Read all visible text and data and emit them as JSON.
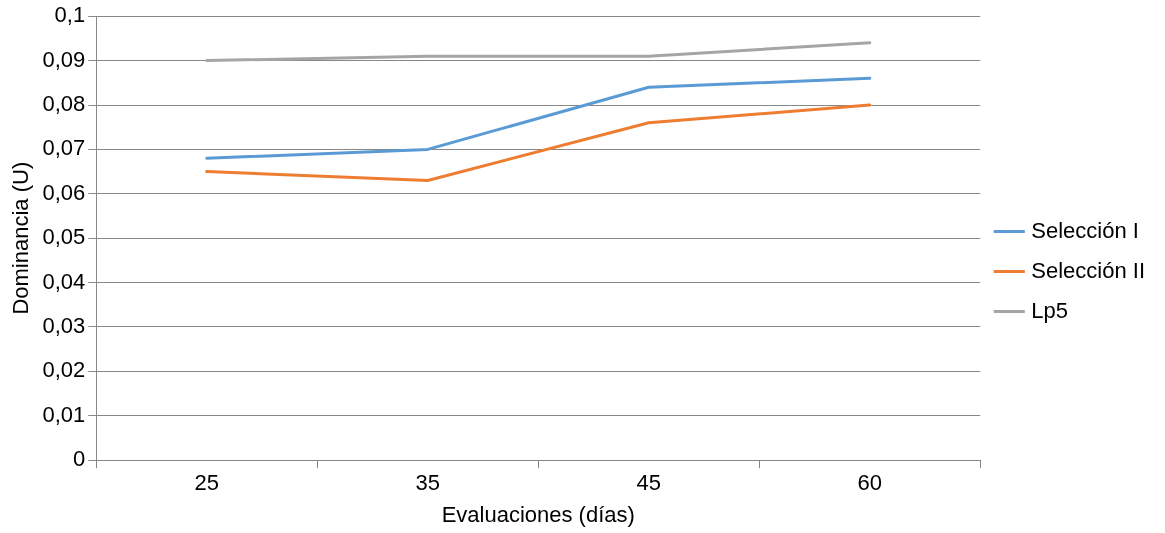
{
  "chart_data": {
    "type": "line",
    "xlabel": "Evaluaciones (días)",
    "ylabel": "Dominancia (U)",
    "categories": [
      "25",
      "35",
      "45",
      "60"
    ],
    "series": [
      {
        "name": "Selección I",
        "color": "#5b9bd5",
        "values": [
          0.068,
          0.07,
          0.084,
          0.086
        ]
      },
      {
        "name": "Selección II",
        "color": "#ed7d31",
        "values": [
          0.065,
          0.063,
          0.076,
          0.08
        ]
      },
      {
        "name": "Lp5",
        "color": "#a5a5a5",
        "values": [
          0.09,
          0.091,
          0.091,
          0.094
        ]
      }
    ],
    "ylim": [
      0,
      0.1
    ],
    "yticks": [
      {
        "value": 0,
        "label": "0"
      },
      {
        "value": 0.01,
        "label": "0,01"
      },
      {
        "value": 0.02,
        "label": "0,02"
      },
      {
        "value": 0.03,
        "label": "0,03"
      },
      {
        "value": 0.04,
        "label": "0,04"
      },
      {
        "value": 0.05,
        "label": "0,05"
      },
      {
        "value": 0.06,
        "label": "0,06"
      },
      {
        "value": 0.07,
        "label": "0,07"
      },
      {
        "value": 0.08,
        "label": "0,08"
      },
      {
        "value": 0.09,
        "label": "0,09"
      },
      {
        "value": 0.1,
        "label": "0,1"
      }
    ],
    "grid": "y",
    "legend": "right",
    "marker": "none",
    "line_style": "solid"
  }
}
